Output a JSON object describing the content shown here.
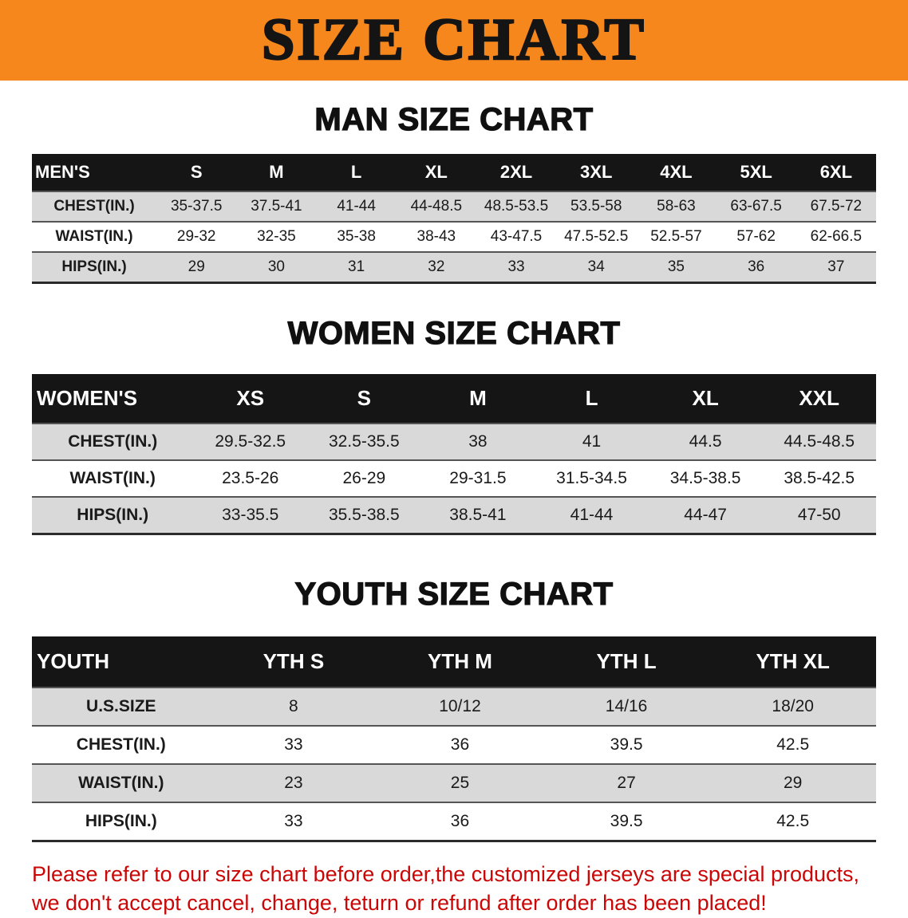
{
  "banner": {
    "title": "SIZE CHART",
    "bg_color": "#f6871d"
  },
  "sections": [
    {
      "heading": "MAN SIZE CHART",
      "table": {
        "header": [
          "MEN'S",
          "S",
          "M",
          "L",
          "XL",
          "2XL",
          "3XL",
          "4XL",
          "5XL",
          "6XL"
        ],
        "rows": [
          [
            "CHEST(IN.)",
            "35-37.5",
            "37.5-41",
            "41-44",
            "44-48.5",
            "48.5-53.5",
            "53.5-58",
            "58-63",
            "63-67.5",
            "67.5-72"
          ],
          [
            "WAIST(IN.)",
            "29-32",
            "32-35",
            "35-38",
            "38-43",
            "43-47.5",
            "47.5-52.5",
            "52.5-57",
            "57-62",
            "62-66.5"
          ],
          [
            "HIPS(IN.)",
            "29",
            "30",
            "31",
            "32",
            "33",
            "34",
            "35",
            "36",
            "37"
          ]
        ]
      }
    },
    {
      "heading": "WOMEN SIZE CHART",
      "table": {
        "header": [
          "WOMEN'S",
          "XS",
          "S",
          "M",
          "L",
          "XL",
          "XXL"
        ],
        "rows": [
          [
            "CHEST(IN.)",
            "29.5-32.5",
            "32.5-35.5",
            "38",
            "41",
            "44.5",
            "44.5-48.5"
          ],
          [
            "WAIST(IN.)",
            "23.5-26",
            "26-29",
            "29-31.5",
            "31.5-34.5",
            "34.5-38.5",
            "38.5-42.5"
          ],
          [
            "HIPS(IN.)",
            "33-35.5",
            "35.5-38.5",
            "38.5-41",
            "41-44",
            "44-47",
            "47-50"
          ]
        ]
      }
    },
    {
      "heading": "YOUTH SIZE CHART",
      "table": {
        "header": [
          "YOUTH",
          "YTH S",
          "YTH M",
          "YTH L",
          "YTH XL"
        ],
        "rows": [
          [
            "U.S.SIZE",
            "8",
            "10/12",
            "14/16",
            "18/20"
          ],
          [
            "CHEST(IN.)",
            "33",
            "36",
            "39.5",
            "42.5"
          ],
          [
            "WAIST(IN.)",
            "23",
            "25",
            "27",
            "29"
          ],
          [
            "HIPS(IN.)",
            "33",
            "36",
            "39.5",
            "42.5"
          ]
        ]
      }
    }
  ],
  "disclaimer": {
    "line1": "Please refer to our size chart before order,the customized jerseys are special products,",
    "line2": "we don't accept cancel, change, teturn or refund after order has been placed!",
    "text_color": "#cb0606"
  },
  "colors": {
    "table_header_bg": "#151515",
    "table_header_text": "#ffffff",
    "row_shaded_bg": "#d9d9d9",
    "row_plain_bg": "#ffffff"
  }
}
